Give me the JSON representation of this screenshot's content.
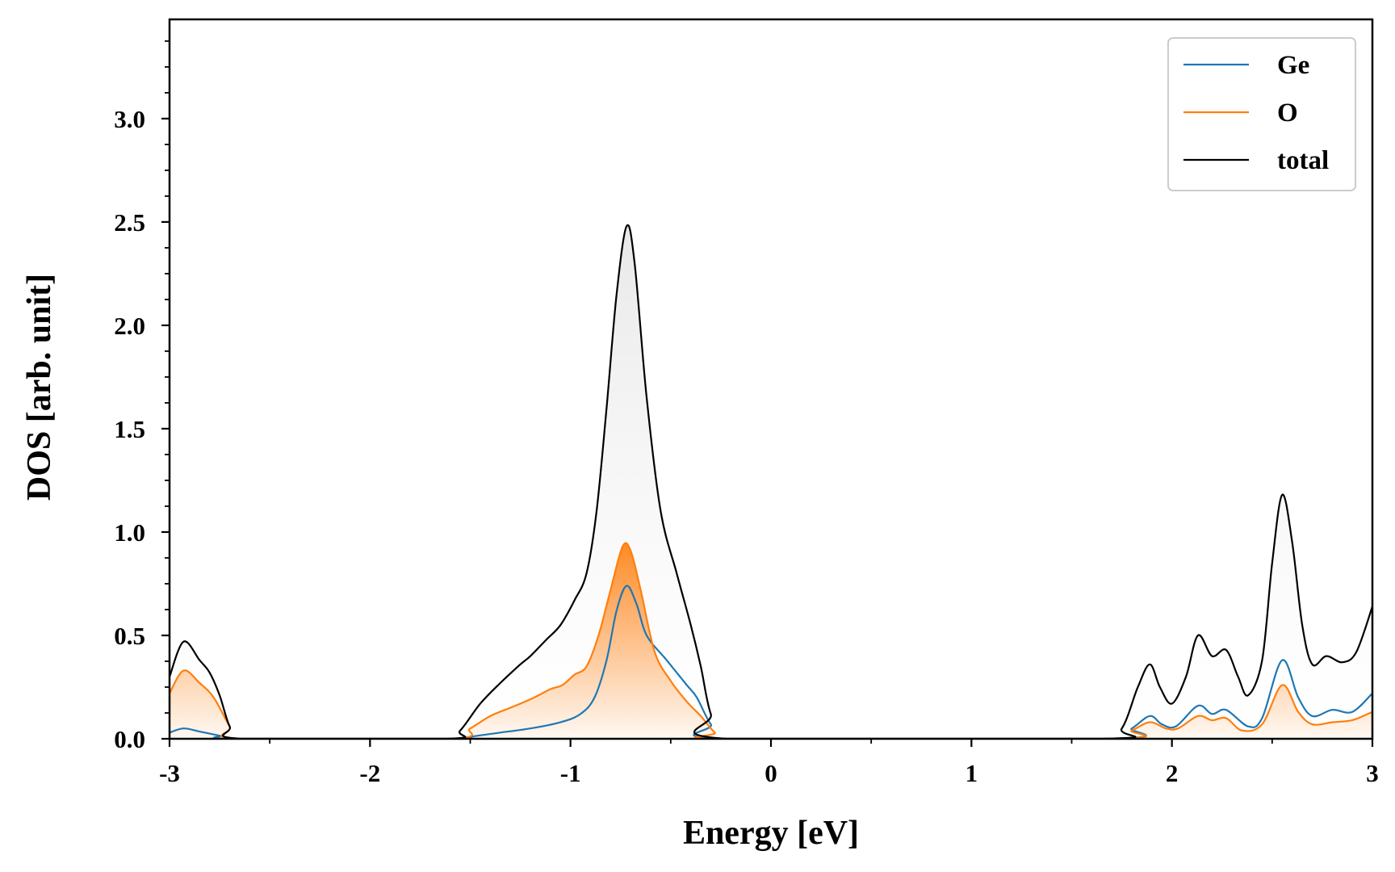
{
  "chart_data": {
    "type": "area",
    "xlabel": "Energy [eV]",
    "ylabel": "DOS [arb. unit]",
    "xlim": [
      -3,
      3
    ],
    "ylim": [
      0,
      3.48
    ],
    "xticks": [
      "-3",
      "-2",
      "-1",
      "0",
      "1",
      "2",
      "3"
    ],
    "yticks": [
      "0.0",
      "0.5",
      "1.0",
      "1.5",
      "2.0",
      "2.5",
      "3.0"
    ],
    "grid": false,
    "legend_position": "top-right",
    "series": [
      {
        "name": "Ge",
        "color": "#1f77b4",
        "points": [
          [
            -3.0,
            0.03
          ],
          [
            -2.93,
            0.05
          ],
          [
            -2.85,
            0.035
          ],
          [
            -2.75,
            0.015
          ],
          [
            -2.68,
            0.0
          ],
          [
            -1.6,
            0.0
          ],
          [
            -1.5,
            0.01
          ],
          [
            -1.35,
            0.03
          ],
          [
            -1.2,
            0.05
          ],
          [
            -1.05,
            0.08
          ],
          [
            -0.95,
            0.12
          ],
          [
            -0.88,
            0.2
          ],
          [
            -0.82,
            0.38
          ],
          [
            -0.77,
            0.62
          ],
          [
            -0.72,
            0.74
          ],
          [
            -0.67,
            0.65
          ],
          [
            -0.62,
            0.5
          ],
          [
            -0.52,
            0.38
          ],
          [
            -0.42,
            0.26
          ],
          [
            -0.37,
            0.2
          ],
          [
            -0.3,
            0.07
          ],
          [
            -0.22,
            0.0
          ],
          [
            1.7,
            0.0
          ],
          [
            1.8,
            0.05
          ],
          [
            1.89,
            0.11
          ],
          [
            1.95,
            0.07
          ],
          [
            2.02,
            0.06
          ],
          [
            2.13,
            0.16
          ],
          [
            2.2,
            0.12
          ],
          [
            2.27,
            0.14
          ],
          [
            2.38,
            0.06
          ],
          [
            2.45,
            0.1
          ],
          [
            2.55,
            0.38
          ],
          [
            2.63,
            0.2
          ],
          [
            2.7,
            0.11
          ],
          [
            2.8,
            0.14
          ],
          [
            2.9,
            0.13
          ],
          [
            3.0,
            0.22
          ]
        ]
      },
      {
        "name": "O",
        "color": "#ff7f0e",
        "points": [
          [
            -3.0,
            0.22
          ],
          [
            -2.93,
            0.33
          ],
          [
            -2.85,
            0.27
          ],
          [
            -2.78,
            0.2
          ],
          [
            -2.7,
            0.06
          ],
          [
            -2.65,
            0.0
          ],
          [
            -1.6,
            0.0
          ],
          [
            -1.5,
            0.05
          ],
          [
            -1.4,
            0.11
          ],
          [
            -1.3,
            0.15
          ],
          [
            -1.25,
            0.17
          ],
          [
            -1.18,
            0.2
          ],
          [
            -1.1,
            0.24
          ],
          [
            -1.04,
            0.26
          ],
          [
            -0.98,
            0.31
          ],
          [
            -0.92,
            0.35
          ],
          [
            -0.86,
            0.5
          ],
          [
            -0.8,
            0.72
          ],
          [
            -0.74,
            0.93
          ],
          [
            -0.7,
            0.91
          ],
          [
            -0.65,
            0.72
          ],
          [
            -0.58,
            0.42
          ],
          [
            -0.5,
            0.28
          ],
          [
            -0.42,
            0.18
          ],
          [
            -0.35,
            0.11
          ],
          [
            -0.28,
            0.03
          ],
          [
            -0.22,
            0.0
          ],
          [
            1.7,
            0.0
          ],
          [
            1.8,
            0.04
          ],
          [
            1.89,
            0.08
          ],
          [
            1.97,
            0.05
          ],
          [
            2.03,
            0.05
          ],
          [
            2.13,
            0.11
          ],
          [
            2.2,
            0.09
          ],
          [
            2.27,
            0.1
          ],
          [
            2.35,
            0.04
          ],
          [
            2.45,
            0.07
          ],
          [
            2.55,
            0.26
          ],
          [
            2.63,
            0.13
          ],
          [
            2.7,
            0.07
          ],
          [
            2.8,
            0.08
          ],
          [
            2.9,
            0.09
          ],
          [
            3.0,
            0.13
          ]
        ]
      },
      {
        "name": "total",
        "color": "#000000",
        "points": [
          [
            -3.0,
            0.3
          ],
          [
            -2.93,
            0.47
          ],
          [
            -2.85,
            0.38
          ],
          [
            -2.8,
            0.32
          ],
          [
            -2.75,
            0.21
          ],
          [
            -2.7,
            0.06
          ],
          [
            -2.64,
            0.0
          ],
          [
            -1.62,
            0.0
          ],
          [
            -1.55,
            0.04
          ],
          [
            -1.45,
            0.17
          ],
          [
            -1.35,
            0.27
          ],
          [
            -1.25,
            0.36
          ],
          [
            -1.2,
            0.4
          ],
          [
            -1.12,
            0.48
          ],
          [
            -1.05,
            0.55
          ],
          [
            -0.98,
            0.67
          ],
          [
            -0.92,
            0.8
          ],
          [
            -0.87,
            1.1
          ],
          [
            -0.82,
            1.6
          ],
          [
            -0.77,
            2.15
          ],
          [
            -0.72,
            2.48
          ],
          [
            -0.68,
            2.3
          ],
          [
            -0.62,
            1.65
          ],
          [
            -0.55,
            1.1
          ],
          [
            -0.47,
            0.8
          ],
          [
            -0.4,
            0.55
          ],
          [
            -0.35,
            0.35
          ],
          [
            -0.3,
            0.12
          ],
          [
            -0.22,
            0.0
          ],
          [
            1.65,
            0.0
          ],
          [
            1.75,
            0.05
          ],
          [
            1.83,
            0.25
          ],
          [
            1.89,
            0.36
          ],
          [
            1.94,
            0.25
          ],
          [
            2.0,
            0.17
          ],
          [
            2.07,
            0.3
          ],
          [
            2.13,
            0.5
          ],
          [
            2.2,
            0.4
          ],
          [
            2.27,
            0.43
          ],
          [
            2.33,
            0.3
          ],
          [
            2.38,
            0.21
          ],
          [
            2.45,
            0.38
          ],
          [
            2.5,
            0.85
          ],
          [
            2.55,
            1.18
          ],
          [
            2.6,
            0.95
          ],
          [
            2.65,
            0.55
          ],
          [
            2.7,
            0.36
          ],
          [
            2.77,
            0.4
          ],
          [
            2.85,
            0.37
          ],
          [
            2.92,
            0.42
          ],
          [
            3.0,
            0.64
          ]
        ]
      }
    ]
  }
}
